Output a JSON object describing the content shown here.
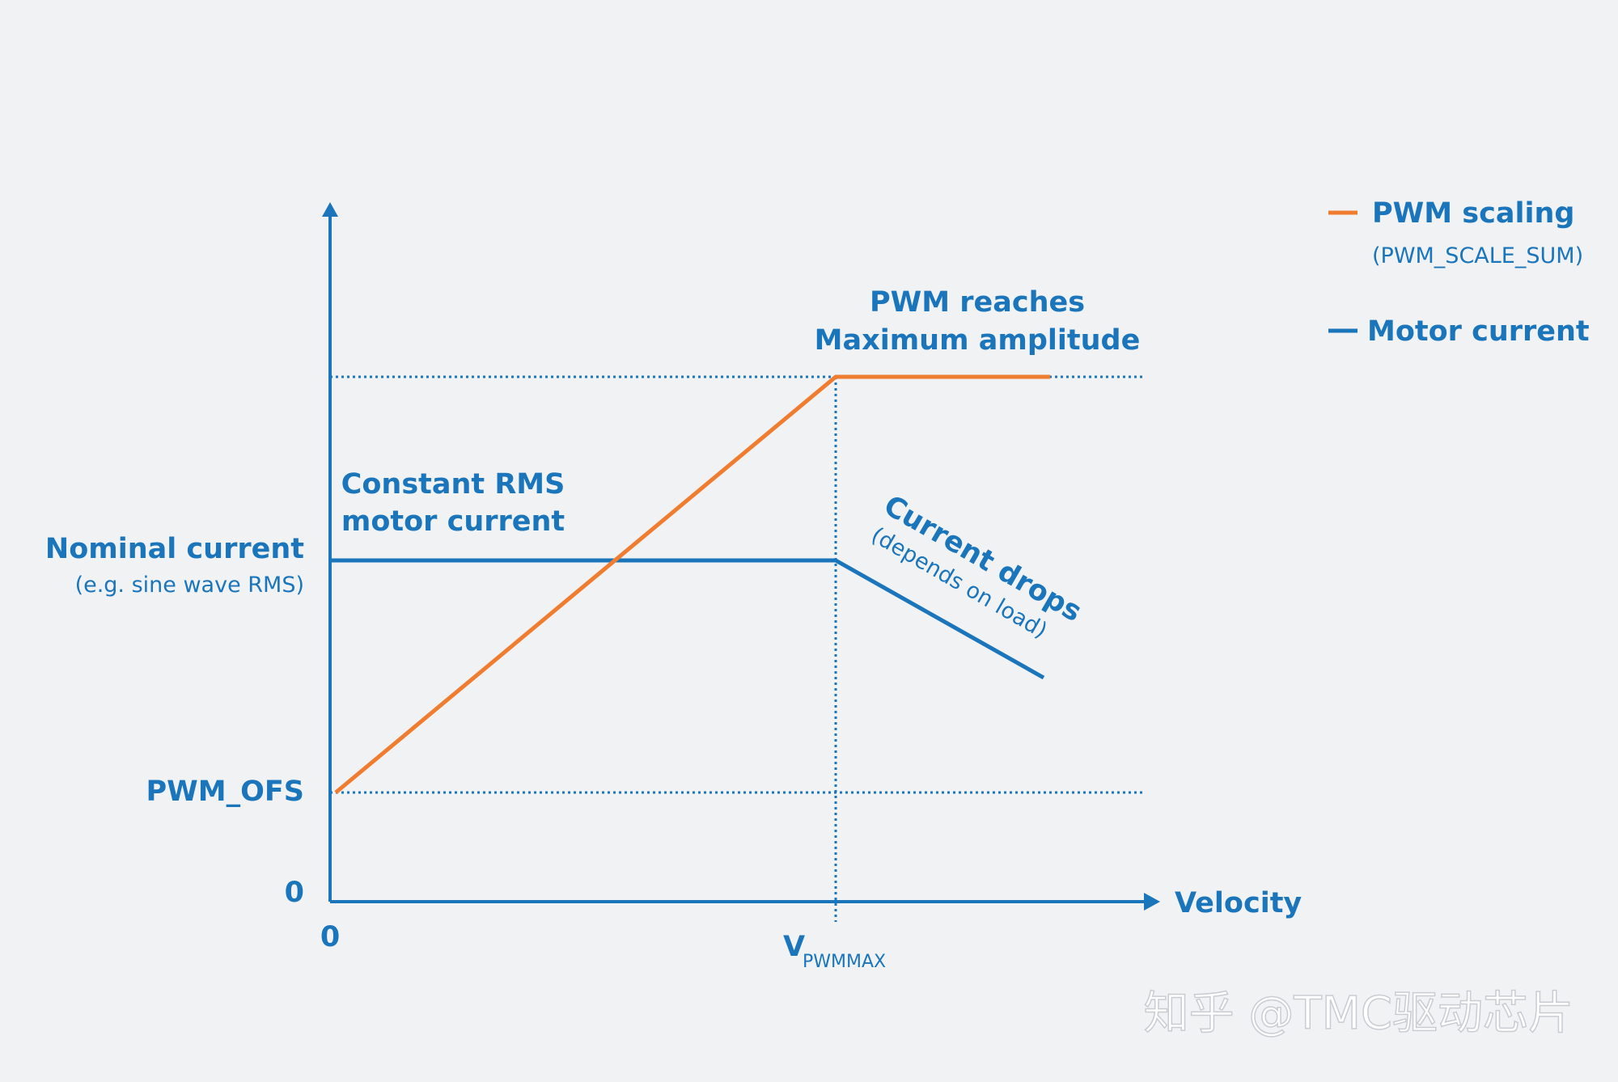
{
  "colors": {
    "background": "#f0f2f4",
    "blue": "#1b75bb",
    "orange": "#f07d2f",
    "watermark": "#ffffff"
  },
  "legend": {
    "pwm_label": "PWM scaling",
    "pwm_sub": "(PWM_SCALE_SUM)",
    "motor_label": "Motor current"
  },
  "axes": {
    "y_label_nominal": "Nominal current",
    "y_label_nominal_sub": "(e.g. sine wave RMS)",
    "y_label_pwm_ofs": "PWM_OFS",
    "y_zero": "0",
    "x_zero": "0",
    "x_label": "Velocity",
    "x_tick_v": "V",
    "x_tick_v_sub": "PWMMAX"
  },
  "annotations": {
    "pwm_reaches_1": "PWM reaches",
    "pwm_reaches_2": "Maximum amplitude",
    "constant_rms_1": "Constant RMS",
    "constant_rms_2": "motor current",
    "current_drops": "Current drops",
    "depends_on_load": "(depends on load)"
  },
  "watermark": "知乎 @TMC驱动芯片"
}
